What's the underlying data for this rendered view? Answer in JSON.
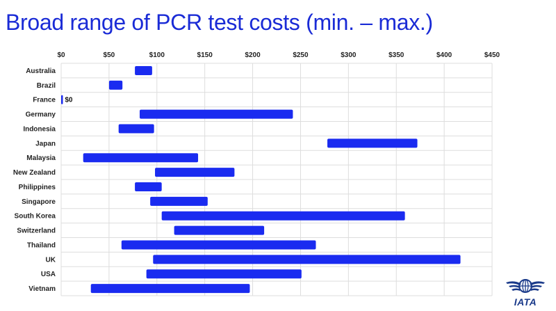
{
  "title": "Broad range of PCR test costs (min. – max.)",
  "logo": {
    "text": "IATA",
    "icon": "iata-globe-wings-icon"
  },
  "colors": {
    "bar": "#1a2bf0",
    "title": "#1a2bd6",
    "grid": "#dddddd",
    "logo": "#1a3a8a"
  },
  "chart_data": {
    "type": "bar",
    "orientation": "horizontal",
    "bar_style": "floating-range",
    "title": "Broad range of PCR test costs (min. – max.)",
    "xlabel": "",
    "ylabel": "",
    "xlim": [
      0,
      450
    ],
    "x_ticks": [
      0,
      50,
      100,
      150,
      200,
      250,
      300,
      350,
      400,
      450
    ],
    "x_tick_labels": [
      "$0",
      "$50",
      "$100",
      "$150",
      "$200",
      "$250",
      "$300",
      "$350",
      "$400",
      "$450"
    ],
    "grid": true,
    "legend": "none",
    "categories": [
      "Australia",
      "Brazil",
      "France",
      "Germany",
      "Indonesia",
      "Japan",
      "Malaysia",
      "New Zealand",
      "Philippines",
      "Singapore",
      "South Korea",
      "Switzerland",
      "Thailand",
      "UK",
      "USA",
      "Vietnam"
    ],
    "min": [
      77,
      50,
      0,
      82,
      60,
      278,
      23,
      98,
      77,
      93,
      105,
      118,
      63,
      96,
      89,
      31
    ],
    "max": [
      95,
      64,
      1,
      242,
      97,
      372,
      143,
      181,
      105,
      153,
      359,
      212,
      266,
      417,
      251,
      197
    ],
    "data_labels": [
      {
        "category": "France",
        "text": "$0"
      }
    ]
  }
}
